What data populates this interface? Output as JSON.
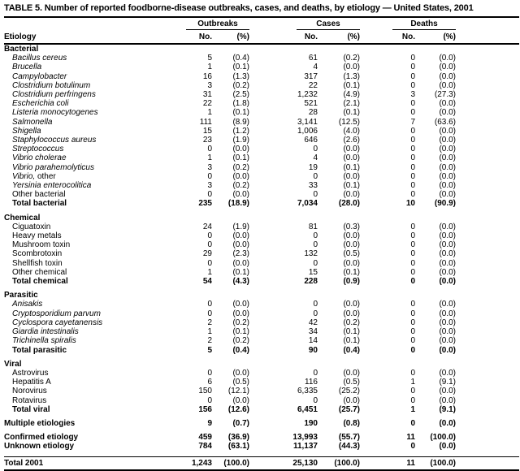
{
  "title": "TABLE 5. Number of reported foodborne-disease outbreaks, cases, and deaths, by etiology — United States, 2001",
  "columns": {
    "row_header": "Etiology",
    "groups": [
      {
        "label": "Outbreaks",
        "sub": [
          "No.",
          "(%)"
        ]
      },
      {
        "label": "Cases",
        "sub": [
          "No.",
          "(%)"
        ]
      },
      {
        "label": "Deaths",
        "sub": [
          "No.",
          "(%)"
        ]
      }
    ]
  },
  "rows": [
    {
      "type": "section",
      "label": "Bacterial"
    },
    {
      "type": "item",
      "indent": true,
      "italic": true,
      "label": "Bacillus cereus",
      "values": [
        "5",
        "(0.4)",
        "61",
        "(0.2)",
        "0",
        "(0.0)"
      ]
    },
    {
      "type": "item",
      "indent": true,
      "italic": true,
      "label": "Brucella",
      "values": [
        "1",
        "(0.1)",
        "4",
        "(0.0)",
        "0",
        "(0.0)"
      ]
    },
    {
      "type": "item",
      "indent": true,
      "italic": true,
      "label": "Campylobacter",
      "values": [
        "16",
        "(1.3)",
        "317",
        "(1.3)",
        "0",
        "(0.0)"
      ]
    },
    {
      "type": "item",
      "indent": true,
      "italic": true,
      "label": "Clostridium botulinum",
      "values": [
        "3",
        "(0.2)",
        "22",
        "(0.1)",
        "0",
        "(0.0)"
      ]
    },
    {
      "type": "item",
      "indent": true,
      "italic": true,
      "label": "Clostridium perfringens",
      "values": [
        "31",
        "(2.5)",
        "1,232",
        "(4.9)",
        "3",
        "(27.3)"
      ]
    },
    {
      "type": "item",
      "indent": true,
      "italic": true,
      "label": "Escherichia coli",
      "values": [
        "22",
        "(1.8)",
        "521",
        "(2.1)",
        "0",
        "(0.0)"
      ]
    },
    {
      "type": "item",
      "indent": true,
      "italic": true,
      "label": "Listeria monocytogenes",
      "values": [
        "1",
        "(0.1)",
        "28",
        "(0.1)",
        "0",
        "(0.0)"
      ]
    },
    {
      "type": "item",
      "indent": true,
      "italic": true,
      "label": "Salmonella",
      "values": [
        "111",
        "(8.9)",
        "3,141",
        "(12.5)",
        "7",
        "(63.6)"
      ]
    },
    {
      "type": "item",
      "indent": true,
      "italic": true,
      "label": "Shigella",
      "values": [
        "15",
        "(1.2)",
        "1,006",
        "(4.0)",
        "0",
        "(0.0)"
      ]
    },
    {
      "type": "item",
      "indent": true,
      "italic": true,
      "label": "Staphylococcus aureus",
      "values": [
        "23",
        "(1.9)",
        "646",
        "(2.6)",
        "0",
        "(0.0)"
      ]
    },
    {
      "type": "item",
      "indent": true,
      "italic": true,
      "label": "Streptococcus",
      "values": [
        "0",
        "(0.0)",
        "0",
        "(0.0)",
        "0",
        "(0.0)"
      ]
    },
    {
      "type": "item",
      "indent": true,
      "italic": true,
      "label": "Vibrio cholerae",
      "values": [
        "1",
        "(0.1)",
        "4",
        "(0.0)",
        "0",
        "(0.0)"
      ]
    },
    {
      "type": "item",
      "indent": true,
      "italic": true,
      "label": "Vibrio parahemolyticus",
      "values": [
        "3",
        "(0.2)",
        "19",
        "(0.1)",
        "0",
        "(0.0)"
      ]
    },
    {
      "type": "item",
      "indent": true,
      "italic": true,
      "label": "Vibrio,",
      "label2": " other",
      "values": [
        "0",
        "(0.0)",
        "0",
        "(0.0)",
        "0",
        "(0.0)"
      ]
    },
    {
      "type": "item",
      "indent": true,
      "italic": true,
      "label": "Yersinia enterocolitica",
      "values": [
        "3",
        "(0.2)",
        "33",
        "(0.1)",
        "0",
        "(0.0)"
      ]
    },
    {
      "type": "item",
      "indent": true,
      "label": "Other bacterial",
      "values": [
        "0",
        "(0.0)",
        "0",
        "(0.0)",
        "0",
        "(0.0)"
      ]
    },
    {
      "type": "total",
      "indent": true,
      "label": "Total bacterial",
      "values": [
        "235",
        "(18.9)",
        "7,034",
        "(28.0)",
        "10",
        "(90.9)"
      ]
    },
    {
      "type": "spacer"
    },
    {
      "type": "section",
      "label": "Chemical"
    },
    {
      "type": "item",
      "indent": true,
      "label": "Ciguatoxin",
      "values": [
        "24",
        "(1.9)",
        "81",
        "(0.3)",
        "0",
        "(0.0)"
      ]
    },
    {
      "type": "item",
      "indent": true,
      "label": "Heavy metals",
      "values": [
        "0",
        "(0.0)",
        "0",
        "(0.0)",
        "0",
        "(0.0)"
      ]
    },
    {
      "type": "item",
      "indent": true,
      "label": "Mushroom toxin",
      "values": [
        "0",
        "(0.0)",
        "0",
        "(0.0)",
        "0",
        "(0.0)"
      ]
    },
    {
      "type": "item",
      "indent": true,
      "label": "Scombrotoxin",
      "values": [
        "29",
        "(2.3)",
        "132",
        "(0.5)",
        "0",
        "(0.0)"
      ]
    },
    {
      "type": "item",
      "indent": true,
      "label": "Shellfish toxin",
      "values": [
        "0",
        "(0.0)",
        "0",
        "(0.0)",
        "0",
        "(0.0)"
      ]
    },
    {
      "type": "item",
      "indent": true,
      "label": "Other chemical",
      "values": [
        "1",
        "(0.1)",
        "15",
        "(0.1)",
        "0",
        "(0.0)"
      ]
    },
    {
      "type": "total",
      "indent": true,
      "label": "Total chemical",
      "values": [
        "54",
        "(4.3)",
        "228",
        "(0.9)",
        "0",
        "(0.0)"
      ]
    },
    {
      "type": "spacer"
    },
    {
      "type": "section",
      "label": "Parasitic"
    },
    {
      "type": "item",
      "indent": true,
      "italic": true,
      "label": "Anisakis",
      "values": [
        "0",
        "(0.0)",
        "0",
        "(0.0)",
        "0",
        "(0.0)"
      ]
    },
    {
      "type": "item",
      "indent": true,
      "italic": true,
      "label": "Cryptosporidium parvum",
      "values": [
        "0",
        "(0.0)",
        "0",
        "(0.0)",
        "0",
        "(0.0)"
      ]
    },
    {
      "type": "item",
      "indent": true,
      "italic": true,
      "label": "Cyclospora cayetanensis",
      "values": [
        "2",
        "(0.2)",
        "42",
        "(0.2)",
        "0",
        "(0.0)"
      ]
    },
    {
      "type": "item",
      "indent": true,
      "italic": true,
      "label": "Giardia intestinalis",
      "values": [
        "1",
        "(0.1)",
        "34",
        "(0.1)",
        "0",
        "(0.0)"
      ]
    },
    {
      "type": "item",
      "indent": true,
      "italic": true,
      "label": "Trichinella spiralis",
      "values": [
        "2",
        "(0.2)",
        "14",
        "(0.1)",
        "0",
        "(0.0)"
      ]
    },
    {
      "type": "total",
      "indent": true,
      "label": "Total parasitic",
      "values": [
        "5",
        "(0.4)",
        "90",
        "(0.4)",
        "0",
        "(0.0)"
      ]
    },
    {
      "type": "spacer"
    },
    {
      "type": "section",
      "label": "Viral"
    },
    {
      "type": "item",
      "indent": true,
      "label": "Astrovirus",
      "values": [
        "0",
        "(0.0)",
        "0",
        "(0.0)",
        "0",
        "(0.0)"
      ]
    },
    {
      "type": "item",
      "indent": true,
      "label": "Hepatitis A",
      "values": [
        "6",
        "(0.5)",
        "116",
        "(0.5)",
        "1",
        "(9.1)"
      ]
    },
    {
      "type": "item",
      "indent": true,
      "label": "Norovirus",
      "values": [
        "150",
        "(12.1)",
        "6,335",
        "(25.2)",
        "0",
        "(0.0)"
      ]
    },
    {
      "type": "item",
      "indent": true,
      "label": "Rotavirus",
      "values": [
        "0",
        "(0.0)",
        "0",
        "(0.0)",
        "0",
        "(0.0)"
      ]
    },
    {
      "type": "total",
      "indent": true,
      "label": "Total viral",
      "values": [
        "156",
        "(12.6)",
        "6,451",
        "(25.7)",
        "1",
        "(9.1)"
      ]
    },
    {
      "type": "spacer"
    },
    {
      "type": "grand",
      "label": "Multiple etiologies",
      "values": [
        "9",
        "(0.7)",
        "190",
        "(0.8)",
        "0",
        "(0.0)"
      ]
    },
    {
      "type": "spacer"
    },
    {
      "type": "grand",
      "label": "Confirmed etiology",
      "values": [
        "459",
        "(36.9)",
        "13,993",
        "(55.7)",
        "11",
        "(100.0)"
      ]
    },
    {
      "type": "grand",
      "label": "Unknown etiology",
      "values": [
        "784",
        "(63.1)",
        "11,137",
        "(44.3)",
        "0",
        "(0.0)"
      ]
    },
    {
      "type": "spacer"
    },
    {
      "type": "grandtotal",
      "label": "Total 2001",
      "values": [
        "1,243",
        "(100.0)",
        "25,130",
        "(100.0)",
        "11",
        "(100.0)"
      ]
    }
  ]
}
